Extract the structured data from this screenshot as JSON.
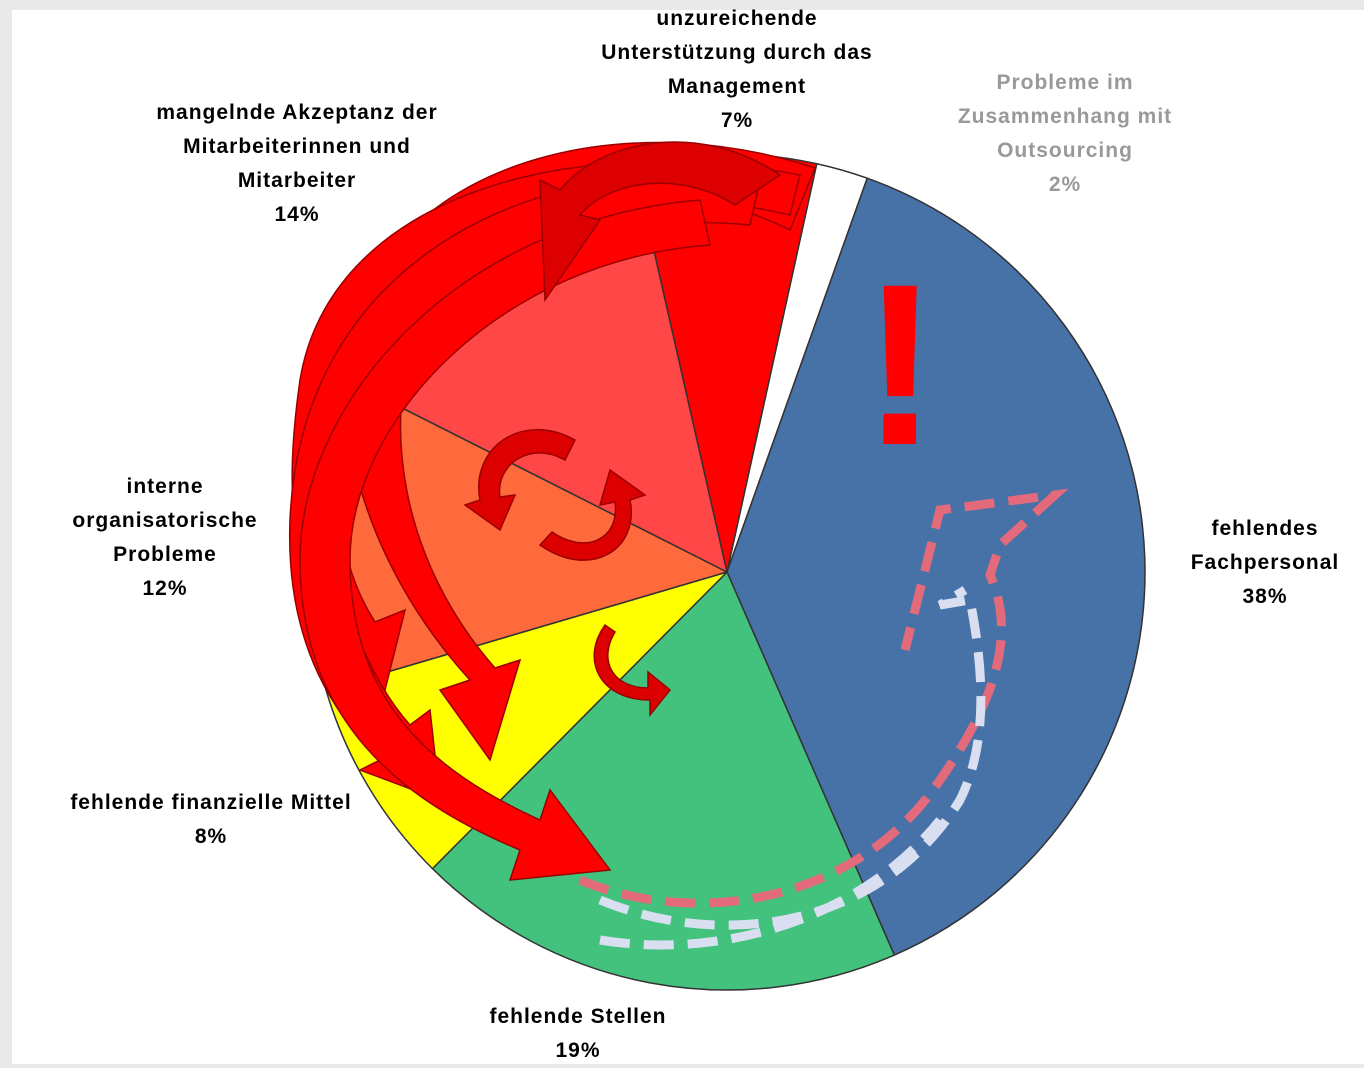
{
  "chart_data": {
    "type": "pie",
    "categories": [
      "Probleme im Zusammenhang mit Outsourcing",
      "fehlendes Fachpersonal",
      "fehlende Stellen",
      "fehlende finanzielle Mittel",
      "interne organisatorische Probleme",
      "mangelnde Akzeptanz der Mitarbeiterinnen und Mitarbeiter",
      "unzureichende Unterstützung durch das Management"
    ],
    "values": [
      2,
      38,
      19,
      8,
      12,
      14,
      7
    ],
    "value_labels": [
      "2%",
      "38%",
      "19%",
      "8%",
      "12%",
      "14%",
      "7%"
    ],
    "colors": [
      "#ffffff",
      "#4672a8",
      "#43c27e",
      "#ffff00",
      "#ff6a3d",
      "#ff4747",
      "#ff0000"
    ],
    "label_colors": [
      "#999999",
      "#000000",
      "#000000",
      "#000000",
      "#000000",
      "#000000",
      "#000000"
    ],
    "annotation": "!"
  }
}
